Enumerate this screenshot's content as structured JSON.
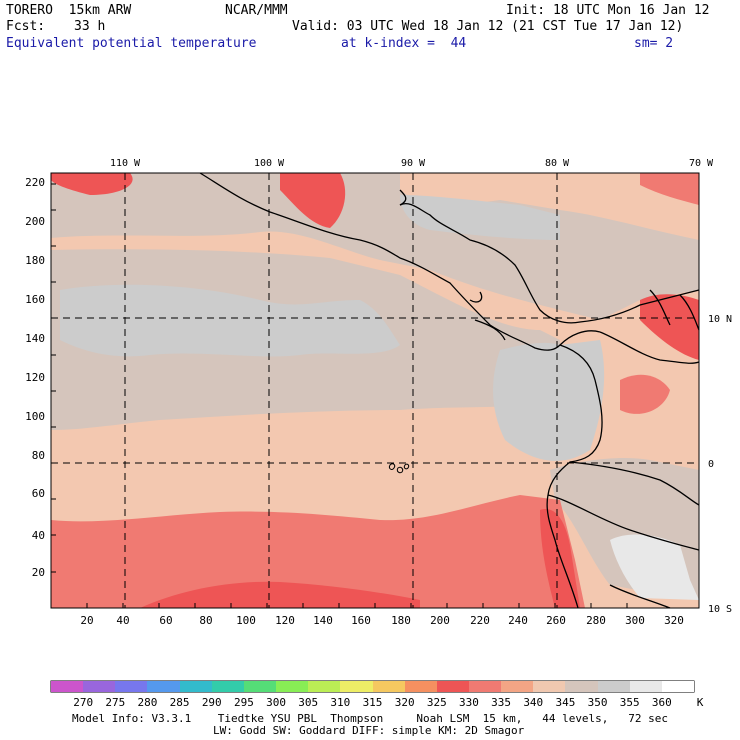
{
  "header": {
    "model": "TORERO  15km ARW",
    "center": "NCAR/MMM",
    "init": "Init: 18 UTC Mon 16 Jan 12",
    "fcst_label": "Fcst:",
    "fcst_value": "33 h",
    "valid": "Valid: 03 UTC Wed 18 Jan 12 (21 CST Tue 17 Jan 12)",
    "field": "Equivalent potential temperature",
    "level": "at k-index =  44",
    "smooth": "sm= 2"
  },
  "axes": {
    "x_ticks": [
      "20",
      "40",
      "60",
      "80",
      "100",
      "120",
      "140",
      "160",
      "180",
      "200",
      "220",
      "240",
      "260",
      "280",
      "300",
      "320"
    ],
    "y_ticks": [
      "20",
      "40",
      "60",
      "80",
      "100",
      "120",
      "140",
      "160",
      "180",
      "200",
      "220"
    ],
    "lon_labels": [
      "110 W",
      "100 W",
      "90 W",
      "80 W",
      "70 W"
    ],
    "lat_labels": [
      "10 N",
      "0",
      "10 S"
    ]
  },
  "colorbar": {
    "unit": "K",
    "levels": [
      "270",
      "275",
      "280",
      "285",
      "290",
      "295",
      "300",
      "305",
      "310",
      "315",
      "320",
      "325",
      "330",
      "335",
      "340",
      "345",
      "350",
      "355",
      "360"
    ],
    "colors": [
      "#cc55cc",
      "#9966dd",
      "#7777ee",
      "#5599ee",
      "#33bbcc",
      "#33ccaa",
      "#55dd77",
      "#88ee55",
      "#bbee55",
      "#eeee66",
      "#f5c860",
      "#f59060",
      "#ee5555",
      "#f07a72",
      "#f3a585",
      "#f0c8b0",
      "#d5c5bc",
      "#cccccc",
      "#e8e8e8",
      "#ffffff"
    ]
  },
  "footer": {
    "line1": "Model Info: V3.3.1    Tiedtke YSU PBL  Thompson     Noah LSM  15 km,   44 levels,   72 sec",
    "line2": "LW: Godd SW: Goddard DIFF: simple KM: 2D Smagor"
  }
}
